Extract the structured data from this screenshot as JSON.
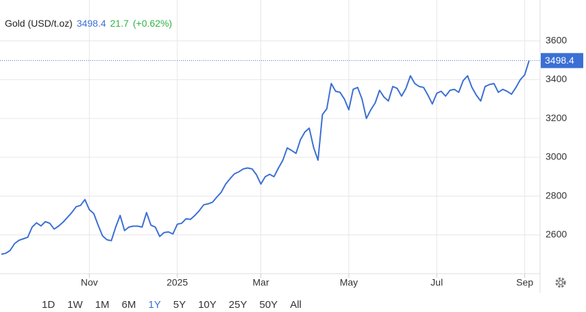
{
  "chart_data": {
    "type": "line",
    "header": {
      "title": "Gold (USD/t.oz)",
      "price": 3498.4,
      "change": 21.7,
      "change_pct": "(+0.62%)",
      "price_color": "#3b6fd4",
      "change_color": "#2fb344"
    },
    "categories": [
      null,
      null,
      null,
      null,
      null,
      null,
      null,
      null,
      null,
      null,
      null,
      null,
      null,
      null,
      null,
      null,
      null,
      null,
      null,
      null,
      "Nov",
      null,
      null,
      null,
      null,
      null,
      null,
      null,
      null,
      null,
      null,
      null,
      null,
      null,
      null,
      null,
      null,
      null,
      null,
      null,
      "2025",
      null,
      null,
      null,
      null,
      null,
      null,
      null,
      null,
      null,
      null,
      null,
      null,
      null,
      null,
      null,
      null,
      null,
      null,
      "Mar",
      null,
      null,
      null,
      null,
      null,
      null,
      null,
      null,
      null,
      null,
      null,
      null,
      null,
      null,
      null,
      null,
      null,
      null,
      null,
      "May",
      null,
      null,
      null,
      null,
      null,
      null,
      null,
      null,
      null,
      null,
      null,
      null,
      null,
      null,
      null,
      null,
      null,
      null,
      null,
      "Jul",
      null,
      null,
      null,
      null,
      null,
      null,
      null,
      null,
      null,
      null,
      null,
      null,
      null,
      null,
      null,
      null,
      null,
      null,
      null,
      "Sep",
      null
    ],
    "values": [
      2500,
      2505,
      2520,
      2555,
      2572,
      2580,
      2588,
      2640,
      2662,
      2646,
      2668,
      2660,
      2630,
      2645,
      2665,
      2690,
      2715,
      2745,
      2752,
      2782,
      2730,
      2710,
      2650,
      2595,
      2575,
      2570,
      2640,
      2700,
      2622,
      2640,
      2645,
      2645,
      2640,
      2715,
      2650,
      2640,
      2592,
      2612,
      2615,
      2605,
      2655,
      2660,
      2683,
      2680,
      2700,
      2725,
      2755,
      2760,
      2768,
      2795,
      2820,
      2862,
      2890,
      2915,
      2925,
      2940,
      2945,
      2940,
      2910,
      2862,
      2900,
      2912,
      2900,
      2945,
      2985,
      3048,
      3035,
      3020,
      3090,
      3130,
      3150,
      3050,
      2985,
      3220,
      3250,
      3380,
      3340,
      3335,
      3300,
      3245,
      3350,
      3360,
      3300,
      3200,
      3245,
      3280,
      3345,
      3310,
      3290,
      3365,
      3355,
      3315,
      3355,
      3420,
      3380,
      3365,
      3360,
      3320,
      3275,
      3330,
      3340,
      3315,
      3345,
      3350,
      3335,
      3395,
      3420,
      3360,
      3320,
      3290,
      3365,
      3375,
      3380,
      3335,
      3350,
      3340,
      3325,
      3360,
      3400,
      3425,
      3498.4
    ],
    "color": "#3b6fd4",
    "ylim": [
      2400,
      3800
    ],
    "yticks": [
      2600,
      2800,
      3000,
      3200,
      3400,
      3600
    ],
    "grid": true,
    "range_buttons": [
      "1D",
      "1W",
      "1M",
      "6M",
      "1Y",
      "5Y",
      "10Y",
      "25Y",
      "50Y",
      "All"
    ],
    "selected": "1Y"
  }
}
